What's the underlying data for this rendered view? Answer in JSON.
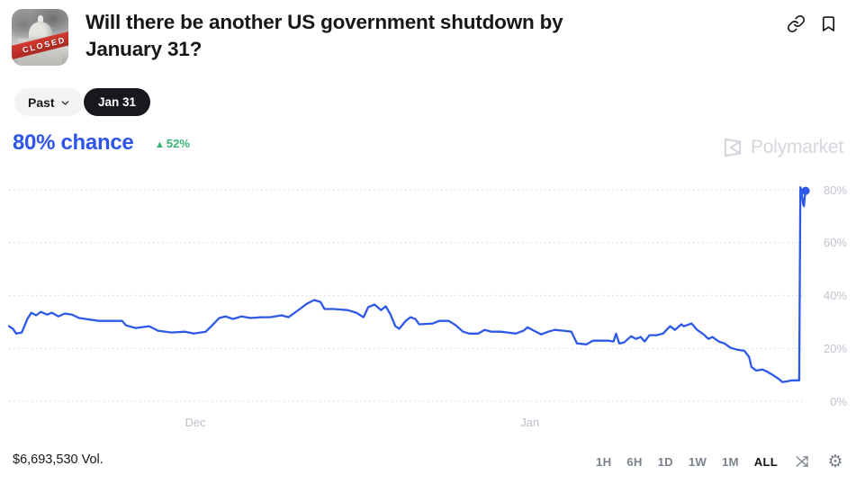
{
  "header": {
    "title": "Will there be another US government shutdown by January 31?",
    "icon_label": "CLOSED"
  },
  "controls": {
    "past_label": "Past",
    "date_tab": "Jan 31"
  },
  "summary": {
    "chance": "80% chance",
    "delta_arrow": "▲",
    "delta": "52%"
  },
  "watermark": "Polymarket",
  "chart_data": {
    "type": "line",
    "title": "Will there be another US government shutdown by January 31? — Yes chance over time",
    "ylabel": "chance (%)",
    "ylim": [
      0,
      88
    ],
    "grid": "dotted horizontal lines at each 20%",
    "legend": "none",
    "line_color": "#2e58e8",
    "yticks": [
      {
        "label": "80%",
        "value": 80
      },
      {
        "label": "60%",
        "value": 60
      },
      {
        "label": "40%",
        "value": 40
      },
      {
        "label": "20%",
        "value": 20
      },
      {
        "label": "0%",
        "value": 0
      }
    ],
    "xticks": [
      {
        "label": "Dec",
        "pos": 23.4
      },
      {
        "label": "Jan",
        "pos": 65.4
      }
    ],
    "end_marker": {
      "x": 100,
      "value": 79.6
    },
    "series": [
      {
        "name": "Yes",
        "points": [
          [
            0,
            28.4
          ],
          [
            0.5,
            27.4
          ],
          [
            0.9,
            25.6
          ],
          [
            1.6,
            26
          ],
          [
            2.3,
            31.1
          ],
          [
            2.8,
            33.5
          ],
          [
            3.4,
            32.5
          ],
          [
            4,
            33.8
          ],
          [
            4.8,
            32.8
          ],
          [
            5.4,
            33.5
          ],
          [
            6.2,
            32.1
          ],
          [
            7,
            33.2
          ],
          [
            7.9,
            32.8
          ],
          [
            8.8,
            31.5
          ],
          [
            11.3,
            30.4
          ],
          [
            14.2,
            30.4
          ],
          [
            14.7,
            28.7
          ],
          [
            15.9,
            27.7
          ],
          [
            17.6,
            28.4
          ],
          [
            18.7,
            26.7
          ],
          [
            20.4,
            26
          ],
          [
            22.1,
            26.3
          ],
          [
            23.2,
            25.6
          ],
          [
            24.7,
            26.3
          ],
          [
            25.5,
            28.7
          ],
          [
            26.4,
            31.5
          ],
          [
            27.2,
            32.1
          ],
          [
            28.1,
            31.1
          ],
          [
            29.2,
            32.1
          ],
          [
            30.3,
            31.5
          ],
          [
            31.7,
            31.8
          ],
          [
            32.8,
            31.8
          ],
          [
            34.2,
            32.5
          ],
          [
            35.1,
            31.8
          ],
          [
            36.2,
            34.2
          ],
          [
            37.4,
            36.9
          ],
          [
            38.3,
            38.3
          ],
          [
            39.1,
            37.6
          ],
          [
            39.6,
            34.9
          ],
          [
            40.8,
            34.9
          ],
          [
            42.5,
            34.5
          ],
          [
            43.6,
            33.5
          ],
          [
            44.5,
            31.8
          ],
          [
            45.1,
            35.6
          ],
          [
            45.9,
            36.6
          ],
          [
            46.7,
            34.5
          ],
          [
            47.3,
            35.9
          ],
          [
            47.9,
            32.8
          ],
          [
            48.5,
            28.4
          ],
          [
            49,
            27.4
          ],
          [
            49.8,
            30.4
          ],
          [
            50.4,
            31.8
          ],
          [
            51,
            31.1
          ],
          [
            51.5,
            29.1
          ],
          [
            53.2,
            29.4
          ],
          [
            54,
            30.4
          ],
          [
            55.2,
            30.4
          ],
          [
            56.1,
            28.7
          ],
          [
            57,
            26.3
          ],
          [
            57.8,
            25.6
          ],
          [
            58.9,
            25.6
          ],
          [
            59.7,
            27
          ],
          [
            60.6,
            26.3
          ],
          [
            61.7,
            26.3
          ],
          [
            62.6,
            26
          ],
          [
            63.6,
            25.6
          ],
          [
            64.6,
            26.7
          ],
          [
            65.1,
            28
          ],
          [
            65.9,
            26.7
          ],
          [
            66.8,
            25.3
          ],
          [
            67.7,
            26.3
          ],
          [
            68.5,
            27
          ],
          [
            69.6,
            26.7
          ],
          [
            70.6,
            26.3
          ],
          [
            71.3,
            21.9
          ],
          [
            72.5,
            21.5
          ],
          [
            73.3,
            22.9
          ],
          [
            75.3,
            22.9
          ],
          [
            75.9,
            22.6
          ],
          [
            76.2,
            25.6
          ],
          [
            76.6,
            21.9
          ],
          [
            77.2,
            22.2
          ],
          [
            78.1,
            24.6
          ],
          [
            78.7,
            23.6
          ],
          [
            79.3,
            24.3
          ],
          [
            79.8,
            22.6
          ],
          [
            80.4,
            25
          ],
          [
            81.3,
            25
          ],
          [
            82.1,
            25.6
          ],
          [
            83,
            28.4
          ],
          [
            83.6,
            27
          ],
          [
            84.4,
            29.1
          ],
          [
            84.7,
            28.4
          ],
          [
            85.7,
            29.4
          ],
          [
            86.4,
            27
          ],
          [
            87.2,
            25.3
          ],
          [
            87.8,
            23.6
          ],
          [
            88.3,
            24.3
          ],
          [
            89.1,
            22.6
          ],
          [
            89.8,
            21.9
          ],
          [
            90.6,
            20.2
          ],
          [
            91.4,
            19.5
          ],
          [
            92.3,
            19.1
          ],
          [
            92.9,
            16.8
          ],
          [
            93.2,
            13
          ],
          [
            93.8,
            11.6
          ],
          [
            94.6,
            12
          ],
          [
            95.1,
            11.3
          ],
          [
            95.9,
            9.9
          ],
          [
            96.6,
            8.5
          ],
          [
            97.1,
            7.2
          ],
          [
            97.6,
            7.5
          ],
          [
            98.3,
            7.9
          ],
          [
            99.2,
            7.9
          ],
          [
            99.35,
            81
          ],
          [
            99.5,
            79
          ],
          [
            99.7,
            74.5
          ],
          [
            99.8,
            73.8
          ],
          [
            99.9,
            77.3
          ],
          [
            100,
            79.6
          ]
        ]
      }
    ]
  },
  "footer": {
    "volume": "$6,693,530 Vol.",
    "ranges": [
      "1H",
      "6H",
      "1D",
      "1W",
      "1M",
      "ALL"
    ],
    "active_range": "ALL"
  },
  "colors": {
    "accent_blue": "#2e58e8",
    "positive_green": "#35b373",
    "axis_gray": "#bfc4cf",
    "watermark_gray": "#d4d7dd",
    "grid_gray": "#d7dae0"
  }
}
